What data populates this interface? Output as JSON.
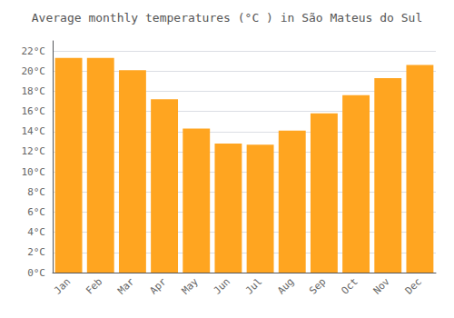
{
  "chart_data": {
    "type": "bar",
    "title": "Average monthly temperatures (°C ) in São Mateus do Sul",
    "categories": [
      "Jan",
      "Feb",
      "Mar",
      "Apr",
      "May",
      "Jun",
      "Jul",
      "Aug",
      "Sep",
      "Oct",
      "Nov",
      "Dec"
    ],
    "values": [
      21.3,
      21.3,
      20.1,
      17.2,
      14.3,
      12.8,
      12.7,
      14.1,
      15.8,
      17.6,
      19.3,
      20.6
    ],
    "color": "#FFA520",
    "ylim": [
      0,
      23
    ],
    "yticks": [
      {
        "value": 0,
        "label": "0°C"
      },
      {
        "value": 2,
        "label": "2°C"
      },
      {
        "value": 4,
        "label": "4°C"
      },
      {
        "value": 6,
        "label": "6°C"
      },
      {
        "value": 8,
        "label": "8°C"
      },
      {
        "value": 10,
        "label": "10°C"
      },
      {
        "value": 12,
        "label": "12°C"
      },
      {
        "value": 14,
        "label": "14°C"
      },
      {
        "value": 16,
        "label": "16°C"
      },
      {
        "value": 18,
        "label": "18°C"
      },
      {
        "value": 20,
        "label": "20°C"
      },
      {
        "value": 22,
        "label": "22°C"
      }
    ],
    "grid": true
  }
}
